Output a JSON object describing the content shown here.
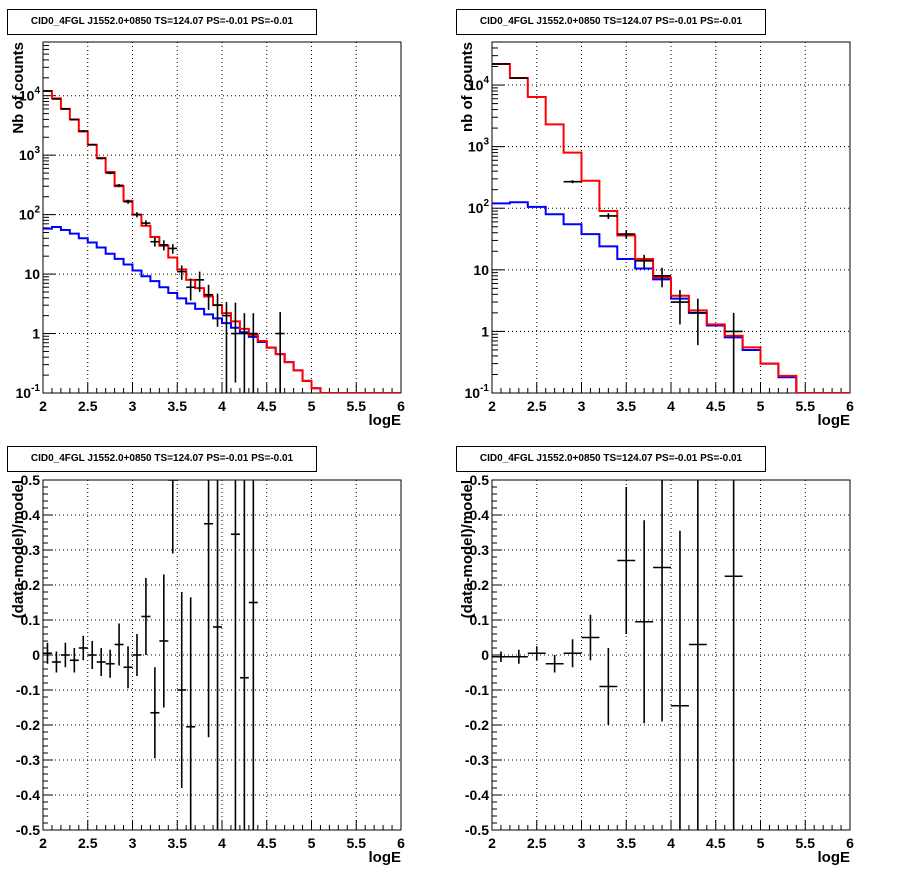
{
  "panels": [
    {
      "title": "CID0_4FGL J1552.0+0850 TS=124.07 PS=-0.01 PS=-0.01"
    },
    {
      "title": "CID0_4FGL J1552.0+0850 TS=124.07 PS=-0.01 PS=-0.01"
    },
    {
      "title": "CID0_4FGL J1552.0+0850 TS=124.07 PS=-0.01 PS=-0.01"
    },
    {
      "title": "CID0_4FGL J1552.0+0850 TS=124.07 PS=-0.01 PS=-0.01"
    }
  ],
  "colors": {
    "total_model": "#ff0000",
    "source_model": "#0000ff",
    "data": "#000000",
    "grid": "#000000"
  },
  "chart_data": [
    {
      "type": "line",
      "title": "CID0_4FGL J1552.0+0850 TS=124.07 PS=-0.01 PS=-0.01",
      "xlabel": "logE",
      "ylabel": "Nb of counts",
      "xlim": [
        2,
        6
      ],
      "ylim": [
        0.1,
        80000
      ],
      "yscale": "log",
      "grid": true,
      "x_ticks": [
        "2",
        "2.5",
        "3",
        "3.5",
        "4",
        "4.5",
        "5",
        "5.5",
        "6"
      ],
      "y_ticks": [
        "10^-1",
        "1",
        "10",
        "10^2",
        "10^3",
        "10^4"
      ],
      "bin_edges": [
        2.0,
        2.1,
        2.2,
        2.3,
        2.4,
        2.5,
        2.6,
        2.7,
        2.8,
        2.9,
        3.0,
        3.1,
        3.2,
        3.3,
        3.4,
        3.5,
        3.6,
        3.7,
        3.8,
        3.9,
        4.0,
        4.1,
        4.2,
        4.3,
        4.4,
        4.5,
        4.6,
        4.7,
        4.8,
        4.9,
        5.0,
        5.1,
        5.2,
        5.3,
        5.4,
        5.5,
        5.6,
        5.7,
        5.8,
        5.9,
        6.0
      ],
      "series": [
        {
          "style": "step",
          "color": "#ff0000",
          "values": [
            12000,
            9000,
            6000,
            4000,
            2500,
            1500,
            900,
            520,
            300,
            170,
            100,
            65,
            42,
            30,
            19,
            12,
            8,
            5.8,
            4.2,
            3.0,
            2.2,
            1.6,
            1.2,
            0.95,
            0.75,
            0.58,
            0.45,
            0.33,
            0.24,
            0.16,
            0.12,
            0.08,
            0.08,
            0.08,
            0.08,
            0.08,
            0.08,
            0.08,
            0.08,
            0.08
          ]
        },
        {
          "style": "step",
          "color": "#0000ff",
          "values": [
            58,
            62,
            55,
            48,
            40,
            34,
            28,
            22,
            18,
            14.5,
            11.5,
            9.2,
            7.6,
            6.0,
            4.8,
            3.9,
            3.2,
            2.6,
            2.1,
            1.8,
            1.5,
            1.25,
            1.05,
            0.88,
            0.72,
            0.58,
            0.45,
            0.33,
            0.24,
            0.16,
            0.12,
            0.08,
            0.08,
            0.08,
            0.08,
            0.08,
            0.08,
            0.08,
            0.08,
            0.08
          ]
        },
        {
          "style": "errorbar",
          "color": "#000000",
          "points": [
            {
              "x": 2.05,
              "y": 12000,
              "ylo": 11800,
              "yhi": 12200
            },
            {
              "x": 2.15,
              "y": 8800,
              "ylo": 8600,
              "yhi": 9000
            },
            {
              "x": 2.25,
              "y": 6000,
              "ylo": 5850,
              "yhi": 6150
            },
            {
              "x": 2.35,
              "y": 3950,
              "ylo": 3850,
              "yhi": 4050
            },
            {
              "x": 2.45,
              "y": 2550,
              "ylo": 2470,
              "yhi": 2630
            },
            {
              "x": 2.55,
              "y": 1500,
              "ylo": 1460,
              "yhi": 1540
            },
            {
              "x": 2.65,
              "y": 880,
              "ylo": 850,
              "yhi": 910
            },
            {
              "x": 2.75,
              "y": 500,
              "ylo": 478,
              "yhi": 522
            },
            {
              "x": 2.85,
              "y": 310,
              "ylo": 292,
              "yhi": 328
            },
            {
              "x": 2.95,
              "y": 165,
              "ylo": 152,
              "yhi": 178
            },
            {
              "x": 3.05,
              "y": 100,
              "ylo": 90,
              "yhi": 110
            },
            {
              "x": 3.15,
              "y": 72,
              "ylo": 64,
              "yhi": 80
            },
            {
              "x": 3.25,
              "y": 35,
              "ylo": 29,
              "yhi": 41
            },
            {
              "x": 3.35,
              "y": 31,
              "ylo": 25,
              "yhi": 37
            },
            {
              "x": 3.45,
              "y": 27,
              "ylo": 22,
              "yhi": 32
            },
            {
              "x": 3.55,
              "y": 11,
              "ylo": 8,
              "yhi": 14
            },
            {
              "x": 3.65,
              "y": 6,
              "ylo": 3.6,
              "yhi": 8.4
            },
            {
              "x": 3.75,
              "y": 8,
              "ylo": 5,
              "yhi": 11
            },
            {
              "x": 3.85,
              "y": 4.5,
              "ylo": 2.5,
              "yhi": 6.6
            },
            {
              "x": 3.95,
              "y": 3,
              "ylo": 1.3,
              "yhi": 4.7
            },
            {
              "x": 4.05,
              "y": 2,
              "ylo": 0.1,
              "yhi": 3.4
            },
            {
              "x": 4.15,
              "y": 1,
              "ylo": 0.15,
              "yhi": 3.3
            },
            {
              "x": 4.25,
              "y": 1,
              "ylo": 0.1,
              "yhi": 2.2
            },
            {
              "x": 4.35,
              "y": 1,
              "ylo": 0.1,
              "yhi": 2.2
            },
            {
              "x": 4.65,
              "y": 1,
              "ylo": 0.1,
              "yhi": 2.3
            }
          ]
        }
      ]
    },
    {
      "type": "line",
      "title": "CID0_4FGL J1552.0+0850 TS=124.07 PS=-0.01 PS=-0.01",
      "xlabel": "logE",
      "ylabel": "nb of counts",
      "xlim": [
        2,
        6
      ],
      "ylim": [
        0.1,
        50000
      ],
      "yscale": "log",
      "grid": true,
      "x_ticks": [
        "2",
        "2.5",
        "3",
        "3.5",
        "4",
        "4.5",
        "5",
        "5.5",
        "6"
      ],
      "y_ticks": [
        "10^-1",
        "1",
        "10",
        "10^2",
        "10^3",
        "10^4"
      ],
      "bin_edges": [
        2.0,
        2.2,
        2.4,
        2.6,
        2.8,
        3.0,
        3.2,
        3.4,
        3.6,
        3.8,
        4.0,
        4.2,
        4.4,
        4.6,
        4.8,
        5.0,
        5.2,
        5.4,
        5.6,
        5.8,
        6.0
      ],
      "series": [
        {
          "style": "step",
          "color": "#ff0000",
          "values": [
            22000,
            13000,
            6400,
            2300,
            800,
            280,
            90,
            36,
            15,
            7.5,
            3.8,
            2.2,
            1.3,
            0.85,
            0.55,
            0.3,
            0.19,
            0.1,
            0.1,
            0.1
          ]
        },
        {
          "style": "step",
          "color": "#0000ff",
          "values": [
            120,
            125,
            105,
            80,
            55,
            38,
            24,
            15,
            10.5,
            7.0,
            3.4,
            2.0,
            1.25,
            0.8,
            0.5,
            0.3,
            0.18,
            0.1,
            0.1,
            0.1
          ]
        },
        {
          "style": "errorbar",
          "color": "#000000",
          "points": [
            {
              "x": 2.1,
              "y": 22000,
              "ylo": 21700,
              "yhi": 22300
            },
            {
              "x": 2.3,
              "y": 13000,
              "ylo": 12780,
              "yhi": 13220
            },
            {
              "x": 2.9,
              "y": 270,
              "ylo": 255,
              "yhi": 285
            },
            {
              "x": 3.3,
              "y": 75,
              "ylo": 67,
              "yhi": 83
            },
            {
              "x": 3.5,
              "y": 38,
              "ylo": 32,
              "yhi": 44
            },
            {
              "x": 3.7,
              "y": 14,
              "ylo": 10.5,
              "yhi": 17.5
            },
            {
              "x": 3.9,
              "y": 8,
              "ylo": 5.2,
              "yhi": 10.8
            },
            {
              "x": 4.1,
              "y": 3,
              "ylo": 1.3,
              "yhi": 4.7
            },
            {
              "x": 4.3,
              "y": 2,
              "ylo": 0.6,
              "yhi": 3.4
            },
            {
              "x": 4.7,
              "y": 1,
              "ylo": 0.1,
              "yhi": 2.0
            }
          ]
        }
      ]
    },
    {
      "type": "scatter",
      "title": "CID0_4FGL J1552.0+0850 TS=124.07 PS=-0.01 PS=-0.01",
      "xlabel": "logE",
      "ylabel": "(data-model)/model",
      "xlim": [
        2,
        6
      ],
      "ylim": [
        -0.5,
        0.5
      ],
      "grid": true,
      "x_ticks": [
        "2",
        "2.5",
        "3",
        "3.5",
        "4",
        "4.5",
        "5",
        "5.5",
        "6"
      ],
      "y_ticks": [
        "-0.5",
        "-0.4",
        "-0.3",
        "-0.2",
        "-0.1",
        "0",
        "0.1",
        "0.2",
        "0.3",
        "0.4",
        "0.5"
      ],
      "xhalf": 0.05,
      "points": [
        {
          "x": 2.05,
          "y": 0.005,
          "err": 0.03
        },
        {
          "x": 2.15,
          "y": -0.02,
          "err": 0.03
        },
        {
          "x": 2.25,
          "y": 0.0,
          "err": 0.035
        },
        {
          "x": 2.35,
          "y": -0.015,
          "err": 0.035
        },
        {
          "x": 2.45,
          "y": 0.02,
          "err": 0.035
        },
        {
          "x": 2.55,
          "y": 0.0,
          "err": 0.04
        },
        {
          "x": 2.65,
          "y": -0.02,
          "err": 0.04
        },
        {
          "x": 2.75,
          "y": -0.025,
          "err": 0.04
        },
        {
          "x": 2.85,
          "y": 0.03,
          "err": 0.06
        },
        {
          "x": 2.95,
          "y": -0.035,
          "err": 0.06
        },
        {
          "x": 3.05,
          "y": 0.0,
          "err": 0.06
        },
        {
          "x": 3.15,
          "y": 0.11,
          "err": 0.11
        },
        {
          "x": 3.25,
          "y": -0.165,
          "err": 0.13
        },
        {
          "x": 3.35,
          "y": 0.04,
          "err": 0.19
        },
        {
          "x": 3.45,
          "y": 0.5,
          "err": 0.21
        },
        {
          "x": 3.55,
          "y": -0.1,
          "err": 0.28
        },
        {
          "x": 3.65,
          "y": -0.205,
          "err": 0.37
        },
        {
          "x": 3.85,
          "y": 0.375,
          "err": 0.61
        },
        {
          "x": 3.95,
          "y": 0.08,
          "err": 0.7
        },
        {
          "x": 4.15,
          "y": 0.345,
          "err": 0.95
        },
        {
          "x": 4.25,
          "y": -0.065,
          "err": 1.0
        },
        {
          "x": 4.35,
          "y": 0.15,
          "err": 1.0
        }
      ]
    },
    {
      "type": "scatter",
      "title": "CID0_4FGL J1552.0+0850 TS=124.07 PS=-0.01 PS=-0.01",
      "xlabel": "logE",
      "ylabel": "(data-model)/model",
      "xlim": [
        2,
        6
      ],
      "ylim": [
        -0.5,
        0.5
      ],
      "grid": true,
      "x_ticks": [
        "2",
        "2.5",
        "3",
        "3.5",
        "4",
        "4.5",
        "5",
        "5.5",
        "6"
      ],
      "y_ticks": [
        "-0.5",
        "-0.4",
        "-0.3",
        "-0.2",
        "-0.1",
        "0",
        "0.1",
        "0.2",
        "0.3",
        "0.4",
        "0.5"
      ],
      "xhalf": 0.1,
      "points": [
        {
          "x": 2.1,
          "y": -0.005,
          "err": 0.015
        },
        {
          "x": 2.3,
          "y": -0.005,
          "err": 0.02
        },
        {
          "x": 2.5,
          "y": 0.005,
          "err": 0.02
        },
        {
          "x": 2.7,
          "y": -0.025,
          "err": 0.025
        },
        {
          "x": 2.9,
          "y": 0.005,
          "err": 0.04
        },
        {
          "x": 3.1,
          "y": 0.05,
          "err": 0.065
        },
        {
          "x": 3.3,
          "y": -0.09,
          "err": 0.11
        },
        {
          "x": 3.5,
          "y": 0.27,
          "err": 0.21
        },
        {
          "x": 3.7,
          "y": 0.095,
          "err": 0.29
        },
        {
          "x": 3.9,
          "y": 0.25,
          "err": 0.44
        },
        {
          "x": 4.1,
          "y": -0.145,
          "err": 0.5
        },
        {
          "x": 4.3,
          "y": 0.03,
          "err": 0.7
        },
        {
          "x": 4.7,
          "y": 0.225,
          "err": 1.0
        }
      ]
    }
  ]
}
